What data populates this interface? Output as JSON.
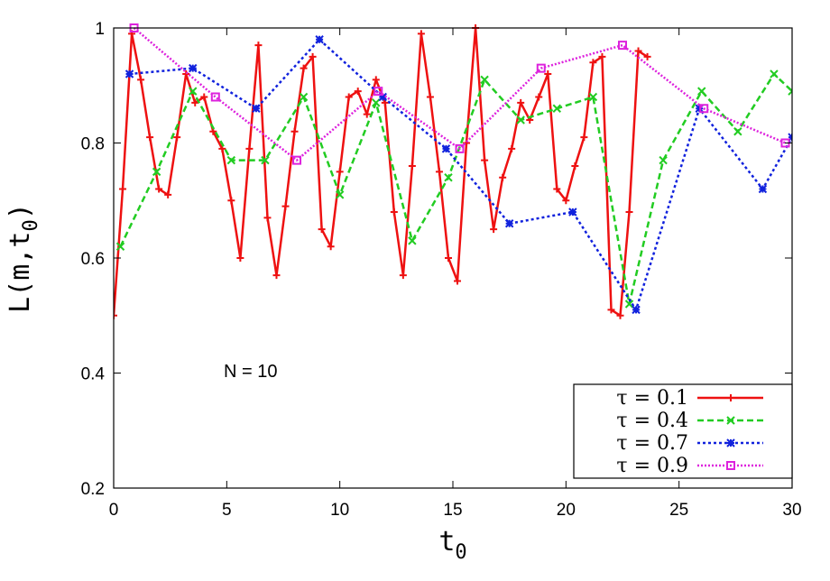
{
  "chart_data": {
    "type": "line",
    "xlabel": "t",
    "xlabel_sub": "0",
    "ylabel": "L(m,t",
    "ylabel_sub": "0",
    "ylabel_end": ")",
    "xlim": [
      0,
      30
    ],
    "ylim": [
      0.2,
      1.0
    ],
    "xticks": [
      0,
      5,
      10,
      15,
      20,
      25,
      30
    ],
    "yticks": [
      0.2,
      0.4,
      0.6,
      0.8,
      1.0
    ],
    "xtick_labels": [
      "0",
      "5",
      "10",
      "15",
      "20",
      "25",
      "30"
    ],
    "ytick_labels": [
      "0.2",
      "0.4",
      "0.6",
      "0.8",
      "1"
    ],
    "annotation": "N = 10",
    "legend_position": "bottom-right",
    "series": [
      {
        "name": "τ =  0.1",
        "color": "#ee1111",
        "dash": "",
        "marker": "plus",
        "x": [
          0.0,
          0.4,
          0.8,
          1.2,
          1.6,
          2.0,
          2.4,
          2.8,
          3.2,
          3.6,
          4.0,
          4.4,
          4.8,
          5.2,
          5.6,
          6.0,
          6.4,
          6.8,
          7.2,
          7.6,
          8.0,
          8.4,
          8.8,
          9.2,
          9.6,
          10.0,
          10.4,
          10.8,
          11.2,
          11.6,
          12.0,
          12.4,
          12.8,
          13.2,
          13.6,
          14.0,
          14.4,
          14.8,
          15.2,
          15.6,
          16.0,
          16.4,
          16.8,
          17.2,
          17.6,
          18.0,
          18.4,
          18.8,
          19.2,
          19.6,
          20.0,
          20.4,
          20.8,
          21.2,
          21.6,
          22.0,
          22.4,
          22.8,
          23.2,
          23.6
        ],
        "values": [
          0.5,
          0.72,
          0.99,
          0.91,
          0.81,
          0.72,
          0.71,
          0.81,
          0.92,
          0.87,
          0.88,
          0.82,
          0.79,
          0.7,
          0.6,
          0.79,
          0.97,
          0.67,
          0.57,
          0.69,
          0.82,
          0.93,
          0.95,
          0.65,
          0.62,
          0.75,
          0.88,
          0.89,
          0.85,
          0.91,
          0.87,
          0.68,
          0.57,
          0.76,
          0.99,
          0.88,
          0.75,
          0.6,
          0.56,
          0.8,
          1.0,
          0.77,
          0.65,
          0.74,
          0.79,
          0.87,
          0.84,
          0.88,
          0.92,
          0.72,
          0.7,
          0.76,
          0.81,
          0.94,
          0.95,
          0.51,
          0.5,
          0.68,
          0.96,
          0.95
        ]
      },
      {
        "name": "τ =  0.4",
        "color": "#22cc22",
        "dash": "7,4",
        "marker": "cross",
        "x": [
          0.3,
          1.9,
          3.5,
          5.2,
          6.7,
          8.4,
          10.0,
          11.6,
          13.2,
          14.8,
          16.4,
          18.0,
          19.6,
          21.2,
          22.8,
          24.3,
          26.0,
          27.6,
          29.2,
          30.0
        ],
        "values": [
          0.62,
          0.75,
          0.89,
          0.77,
          0.77,
          0.88,
          0.71,
          0.87,
          0.63,
          0.74,
          0.91,
          0.84,
          0.86,
          0.88,
          0.52,
          0.77,
          0.89,
          0.82,
          0.92,
          0.89
        ]
      },
      {
        "name": "τ =  0.7",
        "color": "#1122dd",
        "dash": "3,3",
        "marker": "star",
        "x": [
          0.7,
          3.5,
          6.3,
          9.1,
          11.9,
          14.7,
          17.5,
          20.3,
          23.1,
          25.9,
          28.7,
          30.0
        ],
        "values": [
          0.92,
          0.93,
          0.86,
          0.98,
          0.88,
          0.79,
          0.66,
          0.68,
          0.51,
          0.86,
          0.72,
          0.81
        ]
      },
      {
        "name": "τ =  0.9",
        "color": "#dd22dd",
        "dash": "2,2",
        "marker": "square",
        "x": [
          0.9,
          4.5,
          8.1,
          11.7,
          15.3,
          18.9,
          22.5,
          26.1,
          29.7
        ],
        "values": [
          1.0,
          0.88,
          0.77,
          0.89,
          0.79,
          0.93,
          0.97,
          0.86,
          0.8
        ]
      }
    ]
  }
}
